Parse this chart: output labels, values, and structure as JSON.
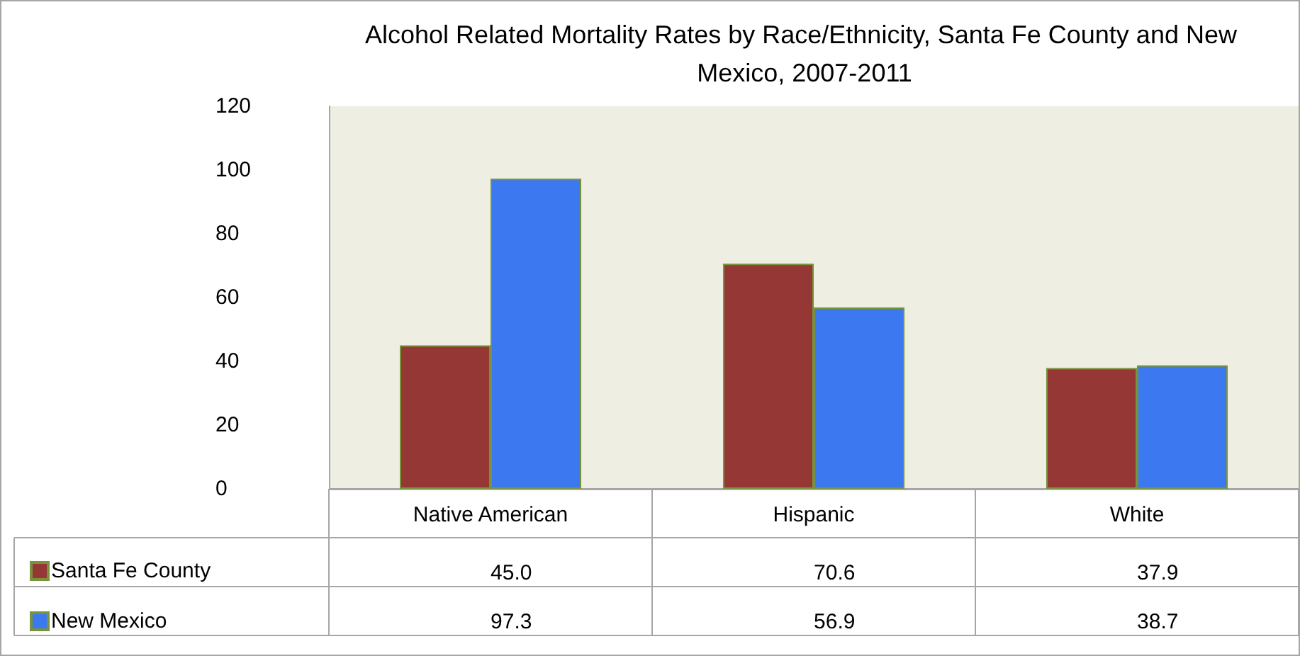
{
  "chart_data": {
    "type": "bar",
    "title": "Alcohol Related Mortality Rates by Race/Ethnicity, Santa Fe County and New Mexico, 2007-2011",
    "categories": [
      "Native American",
      "Hispanic",
      "White"
    ],
    "series": [
      {
        "name": "Santa Fe County",
        "color": "#953735",
        "values": [
          45.0,
          70.6,
          37.9
        ],
        "value_labels": [
          "45.0",
          "70.6",
          "37.9"
        ]
      },
      {
        "name": "New Mexico",
        "color": "#3c78f0",
        "values": [
          97.3,
          56.9,
          38.7
        ],
        "value_labels": [
          "97.3",
          "56.9",
          "38.7"
        ]
      }
    ],
    "ylim": [
      0,
      120
    ],
    "yticks": [
      0,
      20,
      40,
      60,
      80,
      100,
      120
    ],
    "grid": false,
    "legend": "bottom left"
  }
}
